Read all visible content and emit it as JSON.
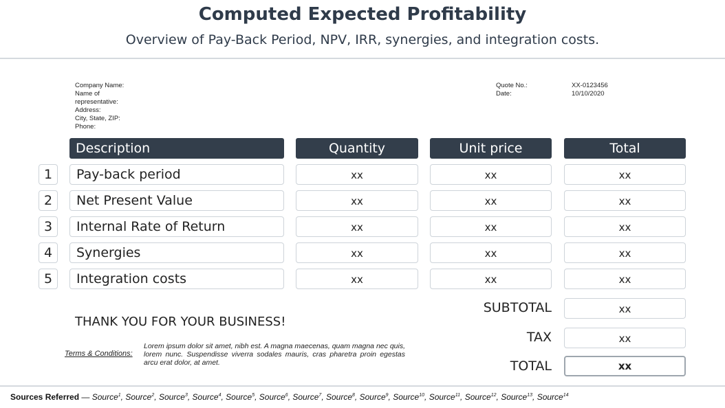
{
  "header": {
    "title": "Computed Expected Profitability",
    "subtitle": "Overview of Pay-Back Period, NPV, IRR, synergies, and integration costs."
  },
  "company_info": {
    "company_name": "Company Name:",
    "representative_1": "Name of",
    "representative_2": "representative:",
    "address": "Address:",
    "city": "City, State, ZIP:",
    "phone": "Phone:"
  },
  "quote": {
    "quote_label": "Quote No.:",
    "date_label": "Date:",
    "quote_value": "XX-0123456",
    "date_value": "10/10/2020"
  },
  "table": {
    "columns": [
      "Description",
      "Quantity",
      "Unit price",
      "Total"
    ],
    "rows": [
      {
        "num": "1",
        "desc": "Pay-back period",
        "qty": "xx",
        "price": "xx",
        "total": "xx"
      },
      {
        "num": "2",
        "desc": "Net Present Value",
        "qty": "xx",
        "price": "xx",
        "total": "xx"
      },
      {
        "num": "3",
        "desc": "Internal Rate of Return",
        "qty": "xx",
        "price": "xx",
        "total": "xx"
      },
      {
        "num": "4",
        "desc": "Synergies",
        "qty": "xx",
        "price": "xx",
        "total": "xx"
      },
      {
        "num": "5",
        "desc": "Integration costs",
        "qty": "xx",
        "price": "xx",
        "total": "xx"
      }
    ]
  },
  "summary": {
    "subtotal_label": "SUBTOTAL",
    "subtotal_value": "xx",
    "tax_label": "TAX",
    "tax_value": "xx",
    "total_label": "TOTAL",
    "total_value": "xx"
  },
  "footer": {
    "thanks": "THANK YOU FOR YOUR BUSINESS!",
    "terms_label": "Terms & Conditions:",
    "terms_text": "Lorem ipsum dolor sit amet, nibh est. A magna maecenas, quam magna nec quis, lorem nunc. Suspendisse viverra sodales mauris, cras pharetra proin egestas arcu erat dolor, at amet."
  },
  "sources": {
    "heading": "Sources Referred",
    "separator": " — ",
    "items": [
      "Source1",
      "Source2",
      "Source3",
      "Source4",
      "Source5",
      "Source6",
      "Source7",
      "Source8",
      "Source9",
      "Source10",
      "Source11",
      "Source12",
      "Source13",
      "Source14"
    ]
  }
}
